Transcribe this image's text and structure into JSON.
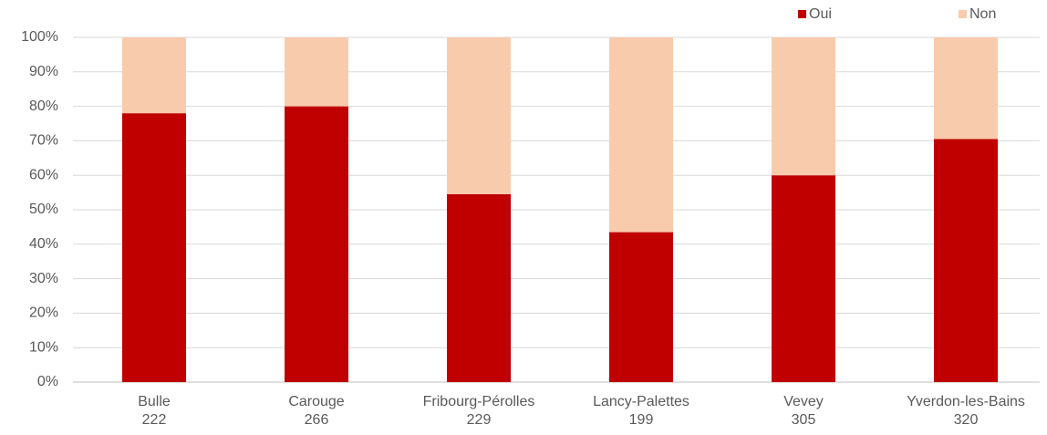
{
  "chart_data": {
    "type": "bar",
    "stacked": true,
    "categories": [
      "Bulle",
      "Carouge",
      "Fribourg-Pérolles",
      "Lancy-Palettes",
      "Vevey",
      "Yverdon-les-Bains"
    ],
    "sample_sizes": [
      222,
      266,
      229,
      199,
      305,
      320
    ],
    "series": [
      {
        "name": "Oui",
        "color": "#c00000",
        "values": [
          78,
          80,
          54.5,
          43.5,
          60,
          70.5
        ]
      },
      {
        "name": "Non",
        "color": "#f8cbad",
        "values": [
          22,
          20,
          45.5,
          56.5,
          40,
          29.5
        ]
      }
    ],
    "ylim": [
      0,
      100
    ],
    "yticks": [
      {
        "value": 0,
        "label": "0%"
      },
      {
        "value": 10,
        "label": "10%"
      },
      {
        "value": 20,
        "label": "20%"
      },
      {
        "value": 30,
        "label": "30%"
      },
      {
        "value": 40,
        "label": "40%"
      },
      {
        "value": 50,
        "label": "50%"
      },
      {
        "value": 60,
        "label": "60%"
      },
      {
        "value": 70,
        "label": "70%"
      },
      {
        "value": 80,
        "label": "80%"
      },
      {
        "value": 90,
        "label": "90%"
      },
      {
        "value": 100,
        "label": "100%"
      }
    ],
    "grid": true,
    "legend": "top-right"
  }
}
